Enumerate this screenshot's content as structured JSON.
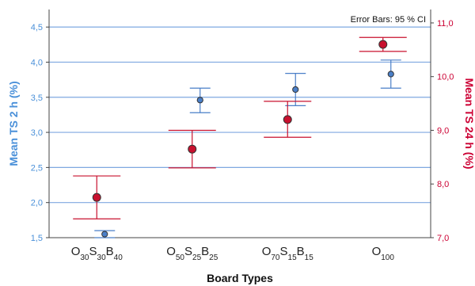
{
  "chart_data": {
    "type": "scatter",
    "title": "",
    "annotation": "Error Bars: 95 % CI",
    "xlabel": "Board Types",
    "categories": [
      {
        "parts": [
          [
            "O",
            "30"
          ],
          [
            "S",
            "30"
          ],
          [
            "B",
            "40"
          ]
        ]
      },
      {
        "parts": [
          [
            "O",
            "50"
          ],
          [
            "S",
            "25"
          ],
          [
            "B",
            "25"
          ]
        ]
      },
      {
        "parts": [
          [
            "O",
            "70"
          ],
          [
            "S",
            "15"
          ],
          [
            "B",
            "15"
          ]
        ]
      },
      {
        "parts": [
          [
            "O",
            "100"
          ]
        ]
      }
    ],
    "y_left": {
      "label": "Mean TS 2 h (%)",
      "ylim": [
        1.5,
        4.75
      ],
      "ticks": [
        1.5,
        2.0,
        2.5,
        3.0,
        3.5,
        4.0,
        4.5
      ],
      "tick_labels": [
        "1,5",
        "2,0",
        "2,5",
        "3,0",
        "3,5",
        "4,0",
        "4,5"
      ],
      "color": "#4a90d9"
    },
    "y_right": {
      "label": "Mean TS 24 h (%)",
      "ylim": [
        7.0,
        11.25
      ],
      "ticks": [
        7.0,
        8.0,
        9.0,
        10.0,
        11.0
      ],
      "tick_labels": [
        "7,0",
        "8,0",
        "9,0",
        "10,0",
        "11,0"
      ],
      "color": "#cc0033"
    },
    "grid": true,
    "series": [
      {
        "name": "Mean TS 2 h (%)",
        "axis": "left",
        "color": "#4a7fc8",
        "values": [
          1.55,
          3.46,
          3.61,
          3.83
        ],
        "ci_low": [
          1.5,
          3.28,
          3.38,
          3.63
        ],
        "ci_high": [
          1.6,
          3.63,
          3.84,
          4.03
        ]
      },
      {
        "name": "Mean TS 24 h (%)",
        "axis": "right",
        "color": "#c8102e",
        "values": [
          7.75,
          8.65,
          9.2,
          10.6
        ],
        "ci_low": [
          7.35,
          8.3,
          8.87,
          10.47
        ],
        "ci_high": [
          8.15,
          9.0,
          9.54,
          10.73
        ]
      }
    ]
  }
}
